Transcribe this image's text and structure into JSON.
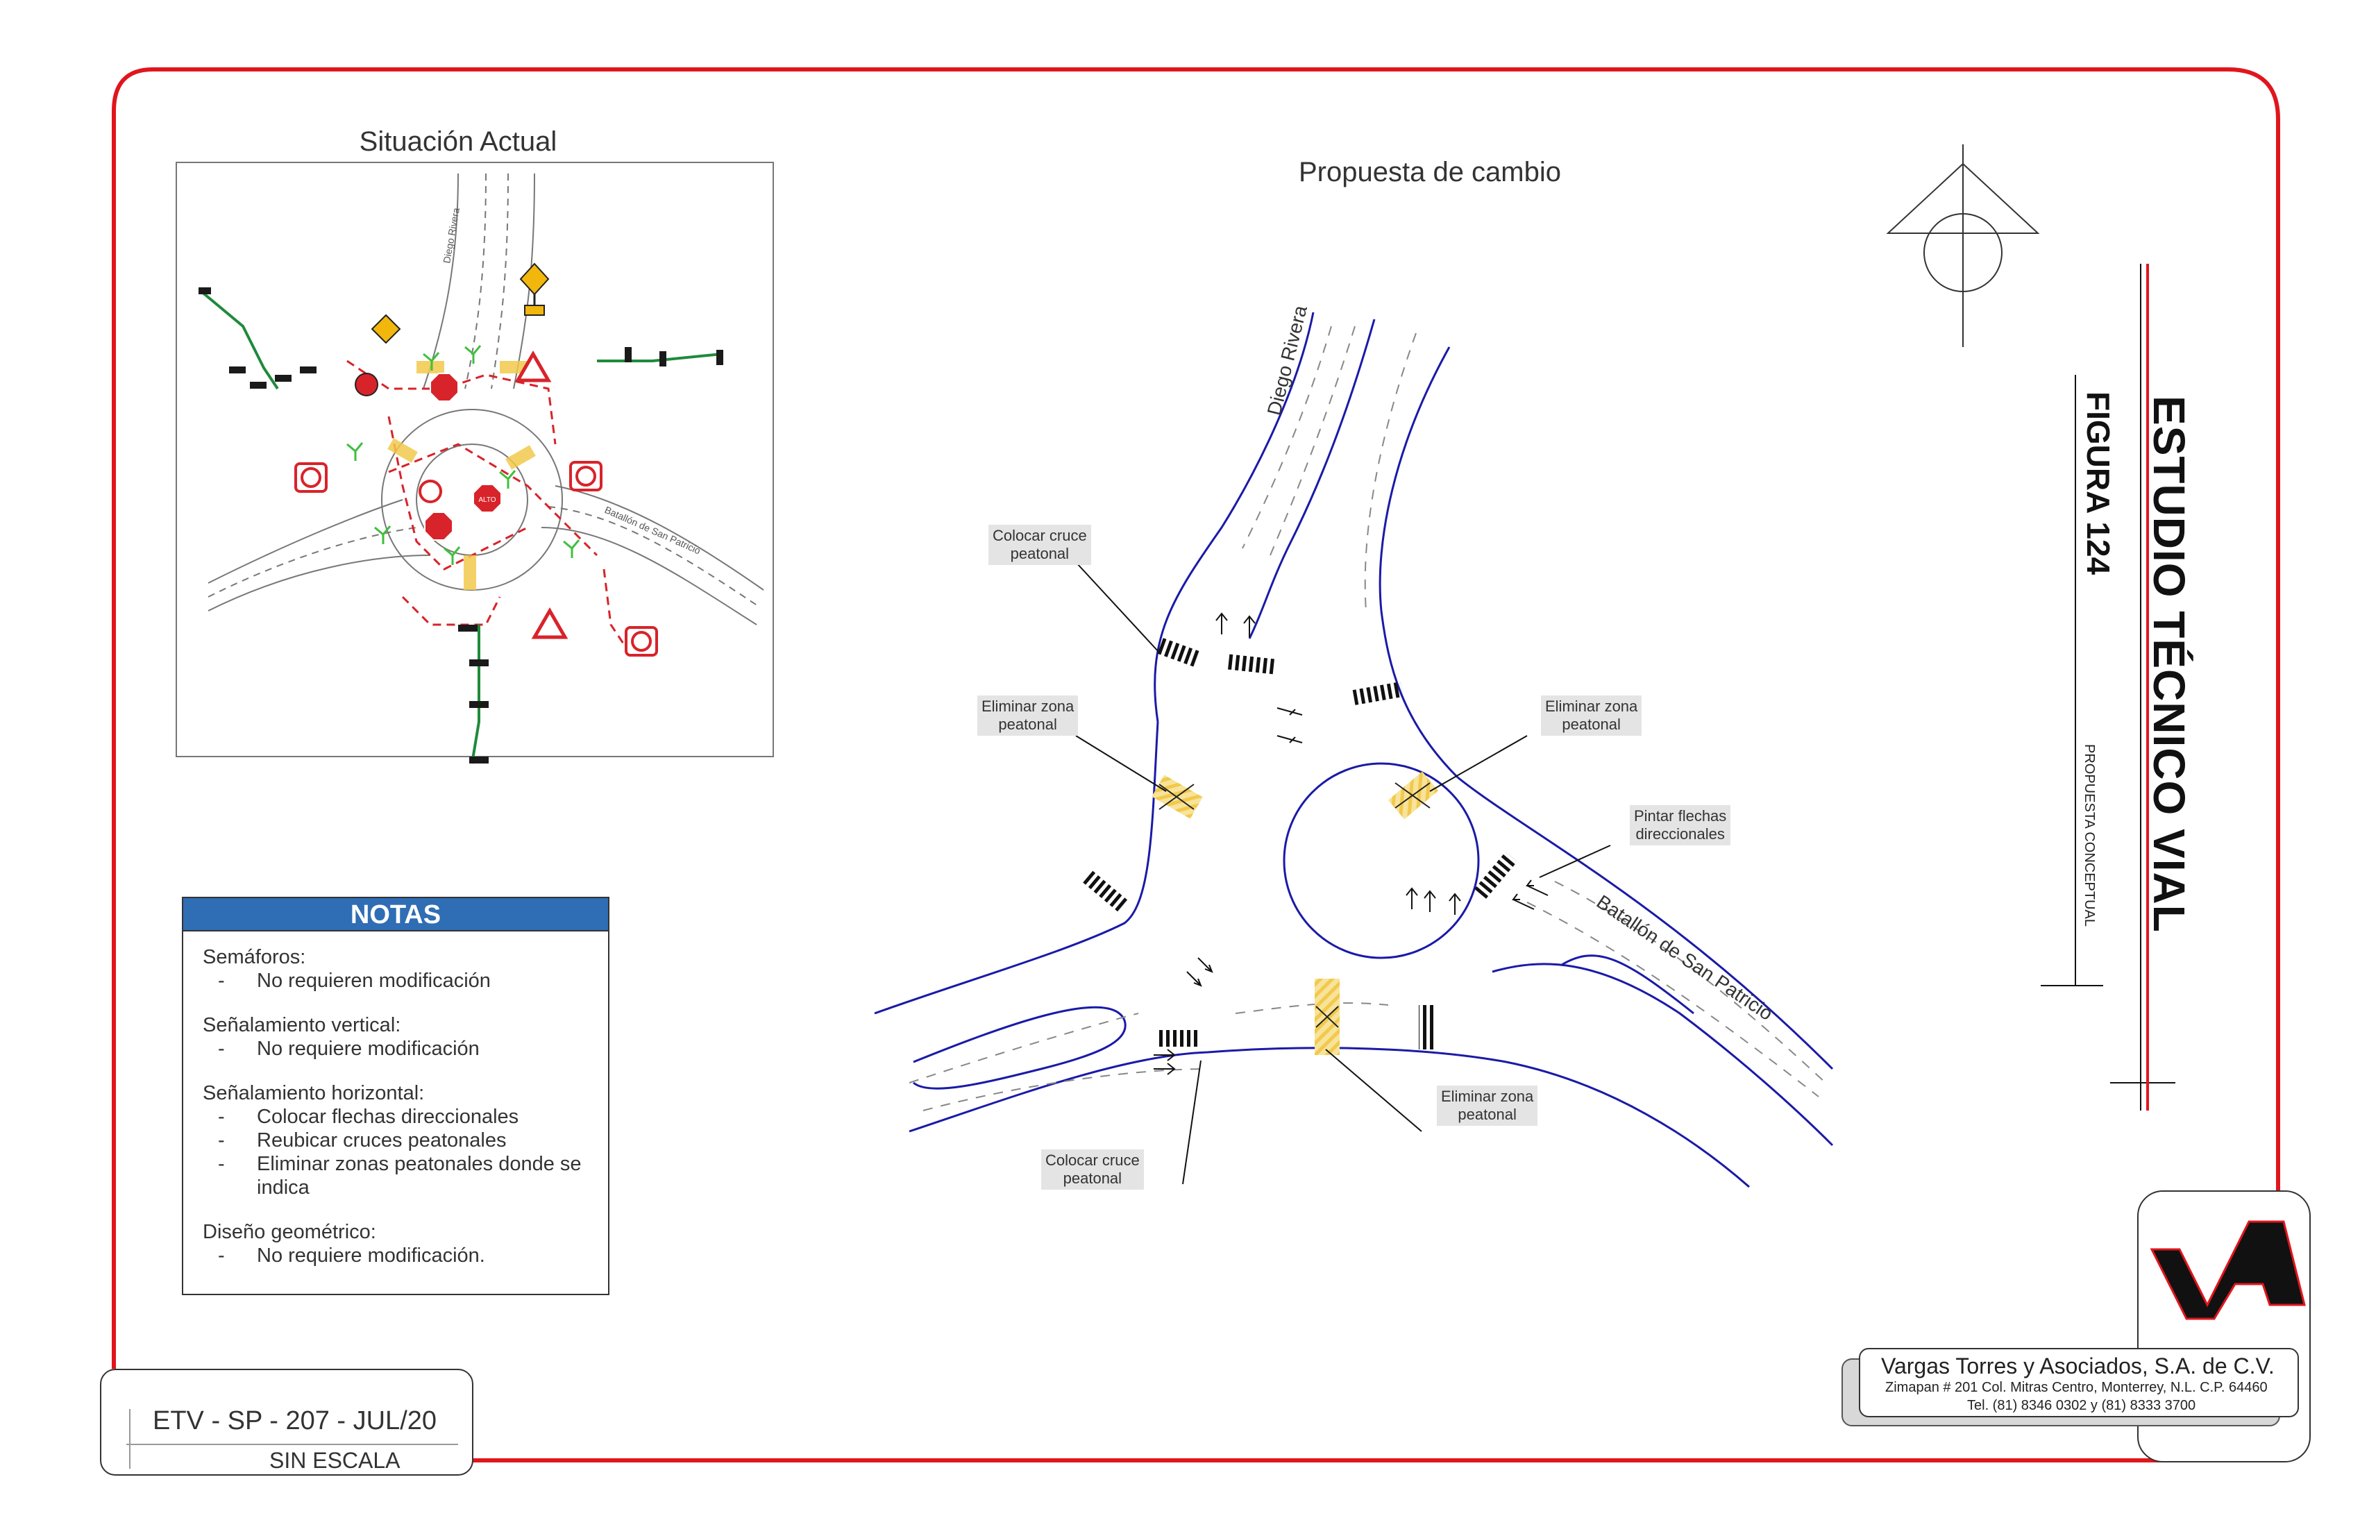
{
  "titles": {
    "actual": "Situación Actual",
    "proposal": "Propuesta de cambio"
  },
  "street_labels": {
    "diego_rivera": "Diego Rivera",
    "batallon": "Batallón de San Patricio",
    "diego_rivera_small": "Diego Rivera",
    "batallon_small": "Batallón de San Patricio"
  },
  "sign_labels": {
    "alto": "ALTO"
  },
  "callouts": [
    {
      "id": "cruce-top",
      "lines": [
        "Colocar cruce",
        "peatonal"
      ]
    },
    {
      "id": "zona-left",
      "lines": [
        "Eliminar zona",
        "peatonal"
      ]
    },
    {
      "id": "zona-right",
      "lines": [
        "Eliminar zona",
        "peatonal"
      ]
    },
    {
      "id": "flechas",
      "lines": [
        "Pintar flechas",
        "direccionales"
      ]
    },
    {
      "id": "zona-bottom",
      "lines": [
        "Eliminar zona",
        "peatonal"
      ]
    },
    {
      "id": "cruce-bottom",
      "lines": [
        "Colocar cruce",
        "peatonal"
      ]
    }
  ],
  "notes": {
    "header": "NOTAS",
    "sections": [
      {
        "title": "Semáforos:",
        "items": [
          "No requieren modificación"
        ]
      },
      {
        "title": "Señalamiento vertical:",
        "items": [
          "No requiere modificación"
        ]
      },
      {
        "title": "Señalamiento horizontal:",
        "items": [
          "Colocar flechas direccionales",
          "Reubicar cruces peatonales",
          "Eliminar zonas peatonales donde se indica"
        ]
      },
      {
        "title": "Diseño geométrico:",
        "items": [
          "No requiere modificación."
        ]
      }
    ]
  },
  "title_block": {
    "study": "ESTUDIO TÉCNICO VIAL",
    "figure": "FIGURA 124",
    "subtitle": "PROPUESTA CONCEPTUAL"
  },
  "drawing_code": {
    "code": "ETV - SP - 207 - JUL/20",
    "scale": "SIN ESCALA"
  },
  "company": {
    "name": "Vargas Torres y Asociados, S.A. de C.V.",
    "address": "Zimapan # 201 Col. Mitras Centro, Monterrey, N.L. C.P. 64460",
    "phone": "Tel. (81) 8346 0302  y  (81) 8333 3700",
    "logo_text": "VTA"
  },
  "colors": {
    "border": "#e0161d",
    "road": "#1a1aa8",
    "notes_header": "#2f6db5",
    "pedestrian_zone": "#f2c94c",
    "signal_green": "#1f8a3b",
    "sign_red": "#d8232a"
  }
}
